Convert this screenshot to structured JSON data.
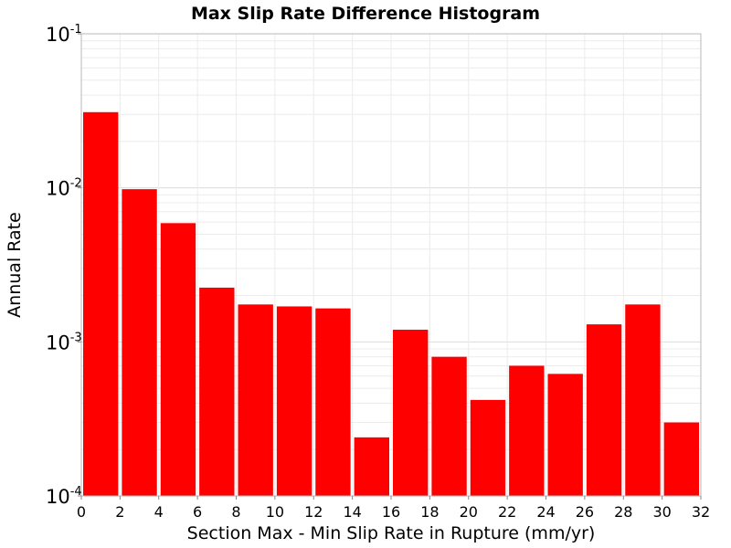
{
  "chart_data": {
    "type": "bar",
    "title": "Max Slip Rate Difference Histogram",
    "xlabel": "Section Max - Min Slip Rate in Rupture (mm/yr)",
    "ylabel": "Annual Rate",
    "xlim": [
      0,
      32
    ],
    "ylim": [
      0.0001,
      0.1
    ],
    "yscale": "log",
    "grid": true,
    "bar_color": "#ff0000",
    "bin_width": 2,
    "bins": [
      {
        "x0": 0,
        "x1": 2,
        "value": 0.031
      },
      {
        "x0": 2,
        "x1": 4,
        "value": 0.0098
      },
      {
        "x0": 4,
        "x1": 6,
        "value": 0.0059
      },
      {
        "x0": 6,
        "x1": 8,
        "value": 0.00225
      },
      {
        "x0": 8,
        "x1": 10,
        "value": 0.00175
      },
      {
        "x0": 10,
        "x1": 12,
        "value": 0.0017
      },
      {
        "x0": 12,
        "x1": 14,
        "value": 0.00165
      },
      {
        "x0": 14,
        "x1": 16,
        "value": 0.00024
      },
      {
        "x0": 16,
        "x1": 18,
        "value": 0.0012
      },
      {
        "x0": 18,
        "x1": 20,
        "value": 0.0008
      },
      {
        "x0": 20,
        "x1": 22,
        "value": 0.00042
      },
      {
        "x0": 22,
        "x1": 24,
        "value": 0.0007
      },
      {
        "x0": 24,
        "x1": 26,
        "value": 0.00062
      },
      {
        "x0": 26,
        "x1": 28,
        "value": 0.0013
      },
      {
        "x0": 28,
        "x1": 30,
        "value": 0.00175
      },
      {
        "x0": 30,
        "x1": 32,
        "value": 0.0003
      }
    ],
    "xticks": [
      "0",
      "2",
      "4",
      "6",
      "8",
      "10",
      "12",
      "14",
      "16",
      "18",
      "20",
      "22",
      "24",
      "26",
      "28",
      "30",
      "32"
    ],
    "xtick_values": [
      0,
      2,
      4,
      6,
      8,
      10,
      12,
      14,
      16,
      18,
      20,
      22,
      24,
      26,
      28,
      30,
      32
    ],
    "yticks": [
      {
        "value": 0.1,
        "base": "10",
        "exp": "-1"
      },
      {
        "value": 0.01,
        "base": "10",
        "exp": "-2"
      },
      {
        "value": 0.001,
        "base": "10",
        "exp": "-3"
      },
      {
        "value": 0.0001,
        "base": "10",
        "exp": "-4"
      }
    ]
  }
}
